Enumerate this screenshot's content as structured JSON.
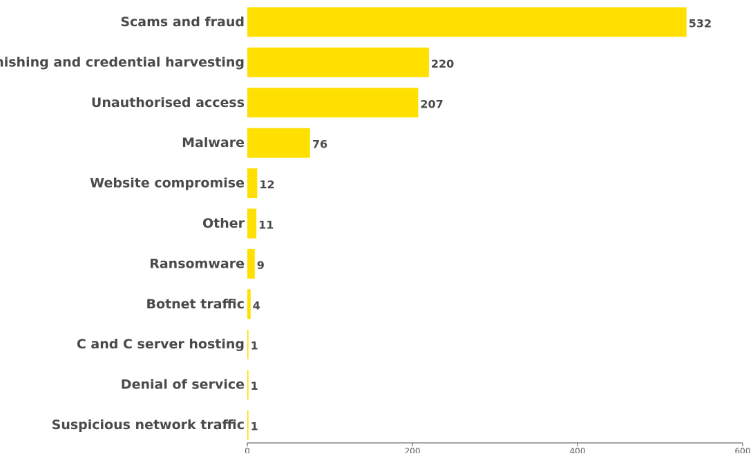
{
  "chart_data": {
    "type": "bar",
    "orientation": "horizontal",
    "title": "",
    "xlabel": "",
    "ylabel": "",
    "categories": [
      "Scams and fraud",
      "Phishing and credential harvesting",
      "Unauthorised access",
      "Malware",
      "Website compromise",
      "Other",
      "Ransomware",
      "Botnet traffic",
      "C and C server hosting",
      "Denial of service",
      "Suspicious network traffic"
    ],
    "values": [
      532,
      220,
      207,
      76,
      12,
      11,
      9,
      4,
      1,
      1,
      1
    ],
    "value_labels": [
      "532",
      "220",
      "207",
      "76",
      "12",
      "11",
      "9",
      "4",
      "1",
      "1",
      "1"
    ],
    "xlim": [
      0,
      600
    ],
    "xticks": [
      0,
      200,
      400,
      600
    ],
    "xtick_labels": [
      "0",
      "200",
      "400",
      "600"
    ],
    "grid": false,
    "legend": "none",
    "bar_color": "#FFE000",
    "text_color": "#4a4a4a"
  }
}
